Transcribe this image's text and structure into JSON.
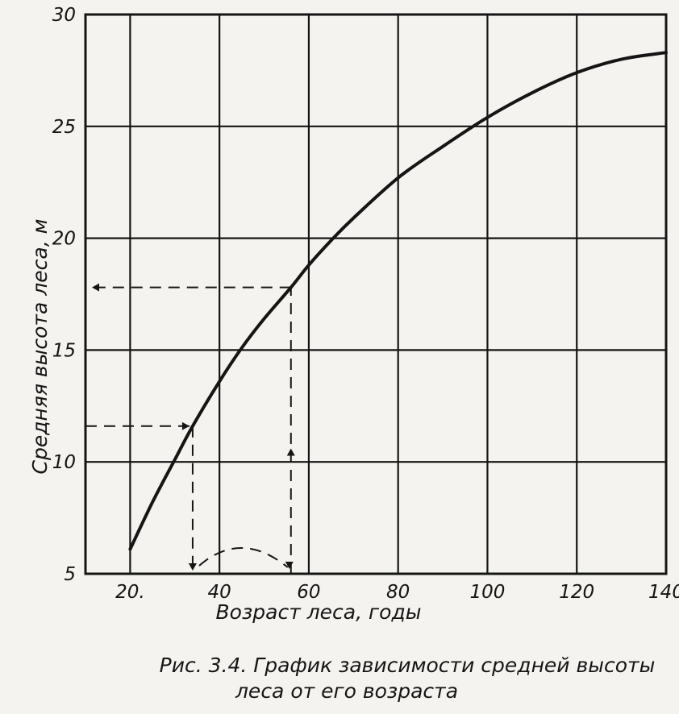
{
  "chart_data": {
    "type": "line",
    "xlabel": "Возраст леса, годы",
    "ylabel": "Средняя высота леса, м",
    "x_ticks": [
      "20.",
      "40",
      "60",
      "80",
      "100",
      "120",
      "140"
    ],
    "y_ticks": [
      "5",
      "10",
      "15",
      "20",
      "25",
      "30"
    ],
    "xlim": [
      10,
      140
    ],
    "ylim": [
      5,
      30
    ],
    "grid": true,
    "series": [
      {
        "x": [
          20,
          25,
          30,
          34,
          40,
          45,
          50,
          56,
          60,
          65,
          70,
          80,
          90,
          100,
          110,
          120,
          130,
          140
        ],
        "y": [
          6.1,
          8.2,
          10.1,
          11.6,
          13.6,
          15.1,
          16.4,
          17.8,
          18.8,
          19.9,
          20.9,
          22.7,
          24.1,
          25.4,
          26.5,
          27.4,
          28.0,
          28.3
        ]
      }
    ],
    "annotations": [
      {
        "type": "lookup",
        "x": 34,
        "y": 11.6
      },
      {
        "type": "lookup",
        "x": 56,
        "y": 17.8
      }
    ]
  },
  "caption": {
    "line1": "Рис. 3.4. График зависимости средней высоты",
    "line2": "леса от его возраста"
  }
}
